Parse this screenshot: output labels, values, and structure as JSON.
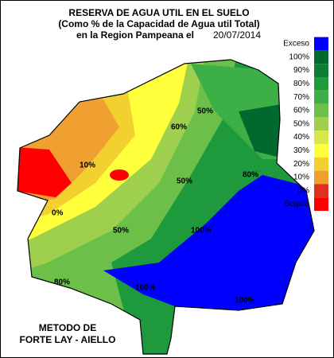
{
  "header": {
    "title": "RESERVA DE AGUA UTIL EN EL SUELO",
    "subtitle": "(Como % de la Capacidad de  Agua util Total)",
    "region": "en la Region Pampeana el",
    "date": "20/07/2014"
  },
  "legend": [
    {
      "label": "Exceso",
      "color": "#0000ff"
    },
    {
      "label": "100%",
      "color": "#006a2e"
    },
    {
      "label": "90%",
      "color": "#0a7f35"
    },
    {
      "label": "80%",
      "color": "#1e9a3c"
    },
    {
      "label": "70%",
      "color": "#3cb046"
    },
    {
      "label": "60%",
      "color": "#6cc04a"
    },
    {
      "label": "50%",
      "color": "#9ed04e"
    },
    {
      "label": "40%",
      "color": "#d8e84a"
    },
    {
      "label": "30%",
      "color": "#ffff3c"
    },
    {
      "label": "20%",
      "color": "#f2d030"
    },
    {
      "label": "10%",
      "color": "#f0a030"
    },
    {
      "label": "0%",
      "color": "#e03020"
    },
    {
      "label": "Sequía",
      "color": "#ff0000"
    }
  ],
  "contours": [
    "0%",
    "10%",
    "50%",
    "50%",
    "50%",
    "60%",
    "80%",
    "100%",
    "100%",
    "100%",
    "80%"
  ],
  "footer": {
    "line1": "METODO DE",
    "line2": "FORTE LAY - AIELLO"
  }
}
